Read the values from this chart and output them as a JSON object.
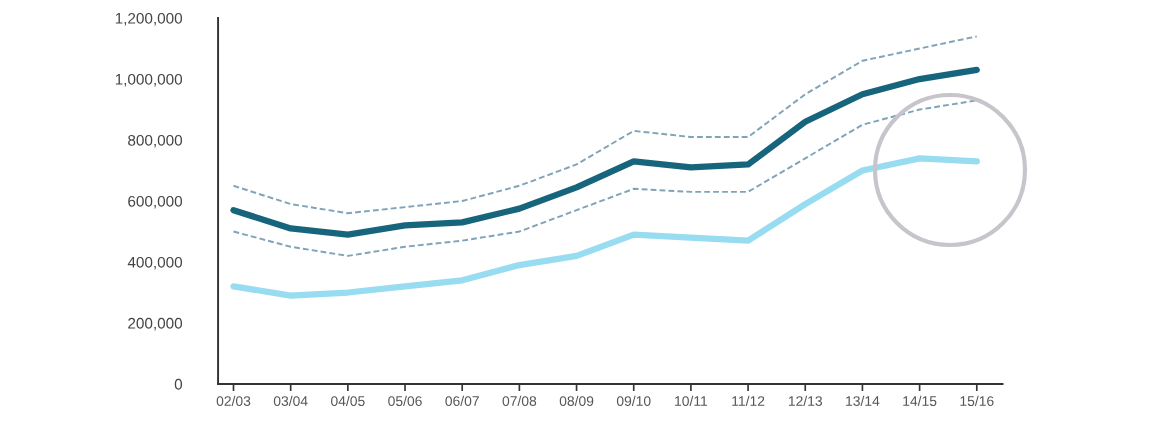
{
  "chart_data": {
    "type": "line",
    "categories": [
      "02/03",
      "03/04",
      "04/05",
      "05/06",
      "06/07",
      "07/08",
      "08/09",
      "09/10",
      "10/11",
      "11/12",
      "12/13",
      "13/14",
      "14/15",
      "15/16"
    ],
    "series": [
      {
        "color": "#7fa3b8",
        "line_style": "dashed",
        "values": [
          650000,
          590000,
          560000,
          580000,
          600000,
          650000,
          720000,
          830000,
          810000,
          810000,
          950000,
          1060000,
          1100000,
          1140000
        ]
      },
      {
        "color": "#7fa3b8",
        "line_style": "dashed",
        "values": [
          500000,
          450000,
          420000,
          450000,
          470000,
          500000,
          570000,
          640000,
          630000,
          630000,
          740000,
          850000,
          900000,
          930000
        ]
      },
      {
        "color": "#97dcf0",
        "line_style": "solid",
        "values": [
          320000,
          290000,
          300000,
          320000,
          340000,
          390000,
          420000,
          490000,
          480000,
          470000,
          590000,
          700000,
          740000,
          730000
        ]
      },
      {
        "color": "#17657c",
        "line_style": "solid",
        "values": [
          570000,
          510000,
          490000,
          520000,
          530000,
          575000,
          645000,
          730000,
          710000,
          720000,
          860000,
          950000,
          1000000,
          1030000
        ]
      }
    ],
    "ylim": [
      0,
      1200000
    ],
    "yticks": [
      0,
      {
        "value": 200000,
        "label": "200,000"
      },
      {
        "value": 400000,
        "label": "400,000"
      },
      {
        "value": 600000,
        "label": "600,000"
      },
      {
        "value": 800000,
        "label": "800,000"
      },
      {
        "value": 1000000,
        "label": "1,000,000"
      },
      {
        "value": 1200000,
        "label": "1,200,000"
      }
    ],
    "grid": false,
    "legend": false,
    "marker": "none"
  }
}
